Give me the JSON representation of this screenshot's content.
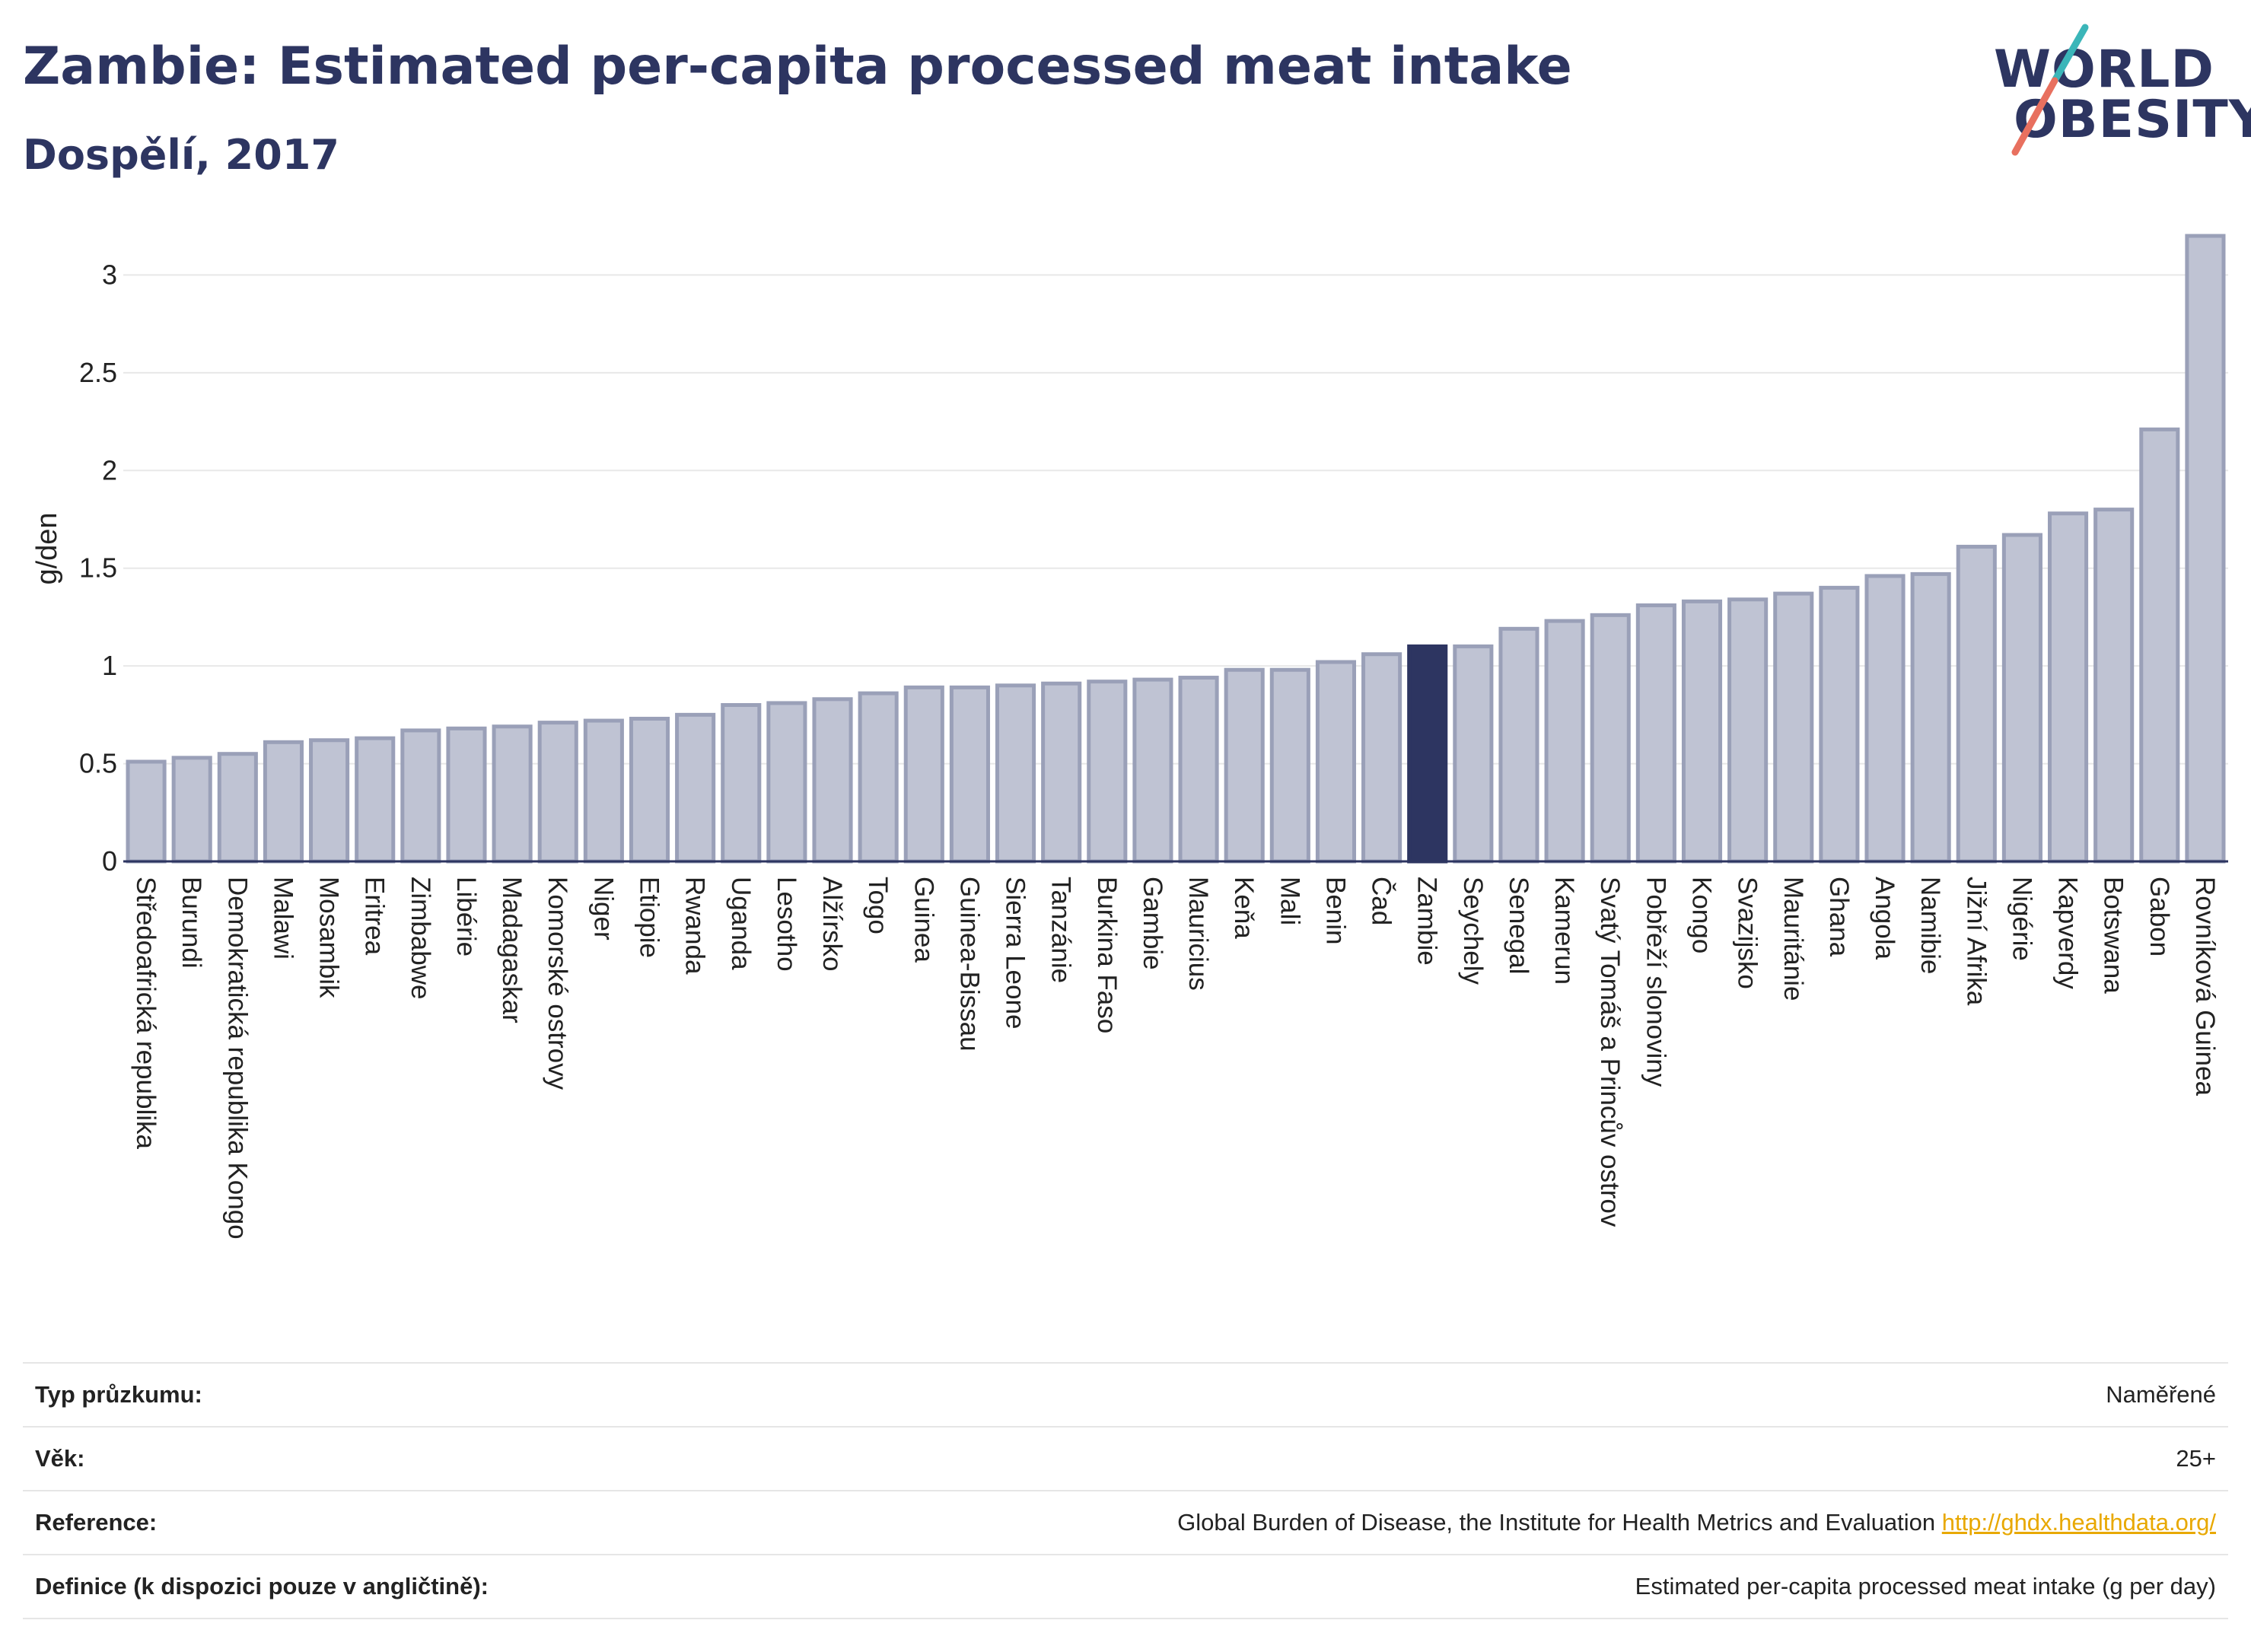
{
  "header": {
    "title": "Zambie: Estimated per-capita processed meat intake",
    "subtitle": "Dospělí, 2017"
  },
  "logo": {
    "line1": "WORLD",
    "line2": "OBESITY"
  },
  "colors": {
    "bar": "#bfc3d3",
    "bar_border": "#9aa0b8",
    "highlight": "#2d3561",
    "title": "#2d3561",
    "link": "#e8a800"
  },
  "chart_data": {
    "type": "bar",
    "ylabel": "g/den",
    "ylim": [
      0,
      3.2
    ],
    "yticks": [
      0,
      0.5,
      1,
      1.5,
      2,
      2.5,
      3
    ],
    "highlight": "Zambie",
    "categories": [
      "Středoafrická republika",
      "Burundi",
      "Demokratická republika Kongo",
      "Malawi",
      "Mosambik",
      "Eritrea",
      "Zimbabwe",
      "Libérie",
      "Madagaskar",
      "Komorské ostrovy",
      "Niger",
      "Etiopie",
      "Rwanda",
      "Uganda",
      "Lesotho",
      "Alžírsko",
      "Togo",
      "Guinea",
      "Guinea-Bissau",
      "Sierra Leone",
      "Tanzánie",
      "Burkina Faso",
      "Gambie",
      "Mauricius",
      "Keňa",
      "Mali",
      "Benin",
      "Čad",
      "Zambie",
      "Seychely",
      "Senegal",
      "Kamerun",
      "Svatý Tomáš a Princův ostrov",
      "Pobřeží slonoviny",
      "Kongo",
      "Svazijsko",
      "Mauritánie",
      "Ghana",
      "Angola",
      "Namibie",
      "Jižní Afrika",
      "Nigérie",
      "Kapverdy",
      "Botswana",
      "Gabon",
      "Rovníková Guinea"
    ],
    "values": [
      0.51,
      0.53,
      0.55,
      0.61,
      0.62,
      0.63,
      0.67,
      0.68,
      0.69,
      0.71,
      0.72,
      0.73,
      0.75,
      0.8,
      0.81,
      0.83,
      0.86,
      0.89,
      0.89,
      0.9,
      0.91,
      0.92,
      0.93,
      0.94,
      0.98,
      0.98,
      1.02,
      1.06,
      1.1,
      1.1,
      1.19,
      1.23,
      1.26,
      1.31,
      1.33,
      1.34,
      1.37,
      1.4,
      1.46,
      1.47,
      1.61,
      1.67,
      1.78,
      1.8,
      2.21,
      3.2
    ]
  },
  "table": [
    {
      "key": "Typ průzkumu:",
      "value": "Naměřené"
    },
    {
      "key": "Věk:",
      "value": "25+"
    },
    {
      "key": "Reference:",
      "value": "Global Burden of Disease, the Institute for Health Metrics and Evaluation",
      "link": "http://ghdx.healthdata.org/"
    },
    {
      "key": "Definice (k dispozici pouze v angličtině):",
      "value": "Estimated per-capita processed meat intake (g per day)"
    }
  ]
}
